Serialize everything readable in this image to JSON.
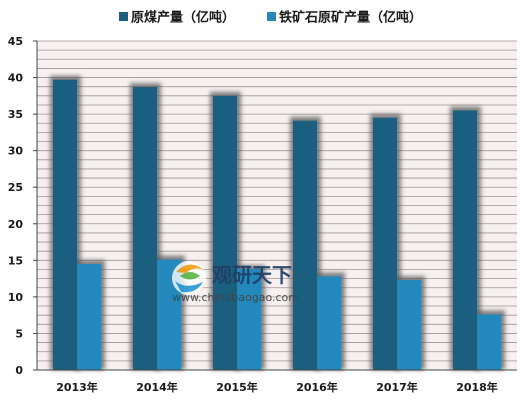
{
  "colors": {
    "series1": "#1b5f7f",
    "series2": "#2388bb",
    "plot_bg": "#f6f0f0",
    "grid": "#a09393",
    "shadow": "#5a5a5a"
  },
  "watermark": {
    "title": "观研天下",
    "url": "www.chinabaogao.com",
    "icon": "logo-swirl-icon"
  },
  "chart_data": {
    "type": "bar",
    "categories": [
      "2013年",
      "2014年",
      "2015年",
      "2016年",
      "2017年",
      "2018年"
    ],
    "series": [
      {
        "name": "原煤产量（亿吨）",
        "values": [
          39.7,
          38.7,
          37.5,
          34.1,
          34.5,
          35.5
        ]
      },
      {
        "name": "铁矿石原矿产量（亿吨）",
        "values": [
          14.5,
          15.1,
          13.8,
          12.8,
          12.3,
          7.6
        ]
      }
    ],
    "ylim": [
      0,
      45
    ],
    "yticks": [
      "0",
      "5",
      "10",
      "15",
      "20",
      "25",
      "30",
      "35",
      "40",
      "45"
    ],
    "grid": true,
    "legend_position": "top"
  }
}
